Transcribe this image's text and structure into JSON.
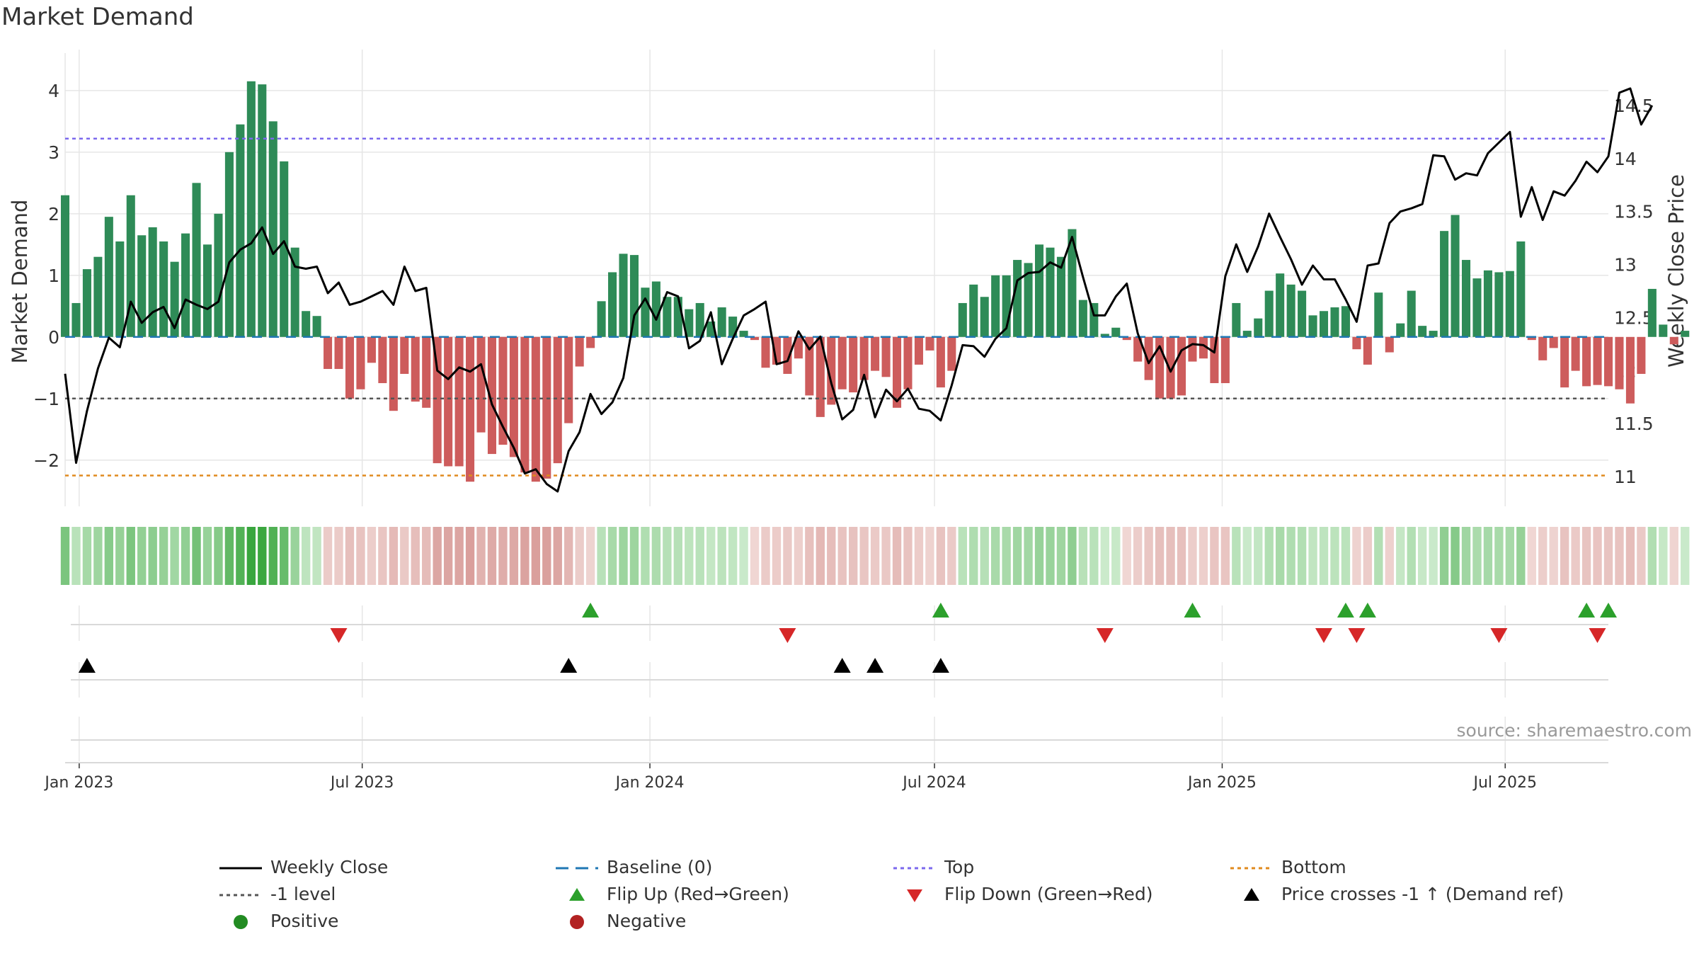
{
  "title": "Market Demand",
  "source_text": "source: sharemaestro.com",
  "colors": {
    "positive": "#2e8b57",
    "negative": "#cd5c5c",
    "price": "#000000",
    "top": "#7b68ee",
    "bottom": "#e08a1e",
    "minus1": "#555555",
    "baseline": "#1f77b4",
    "flip_up": "#2ca02c",
    "flip_down": "#d62728",
    "cross": "#000000",
    "grid": "#e6e6e6"
  },
  "legend": [
    {
      "label": "Weekly Close",
      "sym": "line",
      "color": "#000000"
    },
    {
      "label": "Baseline (0)",
      "sym": "dash",
      "color": "#1f77b4"
    },
    {
      "label": "Top",
      "sym": "dot",
      "color": "#7b68ee"
    },
    {
      "label": "Bottom",
      "sym": "dot",
      "color": "#e08a1e"
    },
    {
      "label": "-1 level",
      "sym": "dot",
      "color": "#555555"
    },
    {
      "label": "Flip Up (Red→Green)",
      "sym": "tri-up",
      "color": "#2ca02c"
    },
    {
      "label": "Flip Down (Green→Red)",
      "sym": "tri-down",
      "color": "#d62728"
    },
    {
      "label": "Price crosses -1 ↑ (Demand ref)",
      "sym": "tri-up",
      "color": "#000000"
    },
    {
      "label": "Positive",
      "sym": "circle",
      "color": "#228b22"
    },
    {
      "label": "Negative",
      "sym": "circle",
      "color": "#b22222"
    }
  ],
  "chart_data": {
    "type": "bar",
    "title": "Market Demand",
    "ylabel": "Market Demand",
    "y2label": "Weekly Close Price",
    "ylim": [
      -2.75,
      4.55
    ],
    "y2lim": [
      10.72,
      14.96
    ],
    "yticks": [
      4,
      3,
      2,
      1,
      0,
      -1,
      -2
    ],
    "y2ticks": [
      14.5,
      14,
      13.5,
      13,
      12.5,
      12,
      11.5,
      11
    ],
    "ytick_labels": [
      "4",
      "3",
      "2",
      "1",
      "0",
      "−1",
      "−2"
    ],
    "y2tick_labels": [
      "14.5",
      "14",
      "13.5",
      "13",
      "12.5",
      "12",
      "11.5",
      "11"
    ],
    "x_start": "2022-12-23",
    "x_end": "2025-09-05",
    "xticks": [
      {
        "date": "2023-01-01",
        "label": "Jan 2023"
      },
      {
        "date": "2023-07-01",
        "label": "Jul 2023"
      },
      {
        "date": "2024-01-01",
        "label": "Jan 2024"
      },
      {
        "date": "2024-07-01",
        "label": "Jul 2024"
      },
      {
        "date": "2025-01-01",
        "label": "Jan 2025"
      },
      {
        "date": "2025-07-01",
        "label": "Jul 2025"
      }
    ],
    "levels": {
      "top": 3.22,
      "bottom": -2.25,
      "minus1": -1.0,
      "baseline": 0
    },
    "series": [
      {
        "name": "Market Demand",
        "type": "bar",
        "start": "2022-12-23",
        "step_days": 7,
        "values": [
          2.3,
          0.55,
          1.1,
          1.3,
          1.95,
          1.55,
          2.3,
          1.65,
          1.78,
          1.55,
          1.22,
          1.68,
          2.5,
          1.5,
          2.0,
          3.0,
          3.45,
          4.15,
          4.1,
          3.5,
          2.85,
          1.45,
          0.42,
          0.34,
          -0.52,
          -0.52,
          -1.0,
          -0.85,
          -0.42,
          -0.75,
          -1.2,
          -0.6,
          -1.05,
          -1.15,
          -2.05,
          -2.1,
          -2.1,
          -2.35,
          -1.55,
          -1.9,
          -1.75,
          -1.95,
          -2.2,
          -2.35,
          -2.3,
          -2.05,
          -1.4,
          -0.48,
          -0.18,
          0.58,
          1.05,
          1.35,
          1.33,
          0.8,
          0.9,
          0.65,
          0.65,
          0.45,
          0.55,
          0.25,
          0.48,
          0.33,
          0.1,
          -0.05,
          -0.5,
          -0.45,
          -0.6,
          -0.35,
          -0.95,
          -1.3,
          -1.1,
          -0.85,
          -0.9,
          -0.7,
          -0.55,
          -0.65,
          -1.15,
          -0.85,
          -0.45,
          -0.22,
          -0.82,
          -0.55,
          0.55,
          0.85,
          0.65,
          1.0,
          1.0,
          1.25,
          1.2,
          1.5,
          1.45,
          1.3,
          1.75,
          0.6,
          0.55,
          0.05,
          0.15,
          -0.05,
          -0.4,
          -0.7,
          -1.0,
          -1.0,
          -0.95,
          -0.4,
          -0.35,
          -0.75,
          -0.75,
          0.55,
          0.1,
          0.3,
          0.75,
          1.03,
          0.85,
          0.75,
          0.35,
          0.42,
          0.48,
          0.5,
          -0.2,
          -0.45,
          0.72,
          -0.25,
          0.22,
          0.75,
          0.18,
          0.1,
          1.72,
          1.98,
          1.25,
          0.95,
          1.08,
          1.05,
          1.07,
          1.55,
          -0.05,
          -0.38,
          -0.18,
          -0.82,
          -0.55,
          -0.8,
          -0.78,
          -0.8,
          -0.85,
          -1.08,
          -0.6,
          0.78,
          0.2,
          -0.12,
          0.1
        ]
      },
      {
        "name": "Weekly Close",
        "type": "line",
        "start": "2022-12-23",
        "step_days": 7,
        "values": [
          11.97,
          11.13,
          11.62,
          12.02,
          12.31,
          12.22,
          12.65,
          12.45,
          12.55,
          12.6,
          12.4,
          12.67,
          12.62,
          12.58,
          12.65,
          13.02,
          13.14,
          13.2,
          13.35,
          13.1,
          13.22,
          12.98,
          12.96,
          12.98,
          12.73,
          12.83,
          12.62,
          12.65,
          12.7,
          12.75,
          12.62,
          12.98,
          12.75,
          12.78,
          12.0,
          11.92,
          12.03,
          11.99,
          12.06,
          11.68,
          11.47,
          11.27,
          11.03,
          11.07,
          10.93,
          10.86,
          11.24,
          11.42,
          11.78,
          11.59,
          11.7,
          11.93,
          12.52,
          12.68,
          12.48,
          12.74,
          12.7,
          12.21,
          12.28,
          12.55,
          12.06,
          12.3,
          12.52,
          12.58,
          12.65,
          12.06,
          12.09,
          12.37,
          12.2,
          12.32,
          11.88,
          11.54,
          11.63,
          11.96,
          11.56,
          11.82,
          11.71,
          11.83,
          11.64,
          11.62,
          11.53,
          11.86,
          12.24,
          12.23,
          12.13,
          12.3,
          12.4,
          12.85,
          12.92,
          12.93,
          13.02,
          12.97,
          13.26,
          12.88,
          12.52,
          12.52,
          12.7,
          12.82,
          12.35,
          12.07,
          12.23,
          11.99,
          12.19,
          12.25,
          12.24,
          12.17,
          12.89,
          13.19,
          12.93,
          13.17,
          13.48,
          13.26,
          13.05,
          12.81,
          12.99,
          12.86,
          12.86,
          12.67,
          12.46,
          12.99,
          13.01,
          13.39,
          13.5,
          13.53,
          13.57,
          14.03,
          14.02,
          13.8,
          13.86,
          13.84,
          14.05,
          14.15,
          14.25,
          13.45,
          13.73,
          13.42,
          13.69,
          13.65,
          13.79,
          13.97,
          13.87,
          14.02,
          14.62,
          14.66,
          14.32,
          14.5
        ]
      }
    ],
    "heatmap_strip": {
      "label": "Demand color strip (one cell per week, shade by Market Demand)"
    },
    "flip_up": [
      "2023-11-24",
      "2024-07-05",
      "2024-12-13",
      "2025-03-21",
      "2025-04-04",
      "2025-08-22",
      "2025-09-05"
    ],
    "flip_down": [
      "2023-06-16",
      "2024-03-29",
      "2024-10-18",
      "2025-03-07",
      "2025-03-28",
      "2025-06-27",
      "2025-08-29"
    ],
    "price_crosses": [
      "2023-01-06",
      "2023-11-10",
      "2024-05-03",
      "2024-05-24",
      "2024-07-05"
    ],
    "xaxis_labels": [
      "Jan 2023",
      "Jul 2023",
      "Jan 2024",
      "Jul 2024",
      "Jan 2025",
      "Jul 2025"
    ]
  }
}
